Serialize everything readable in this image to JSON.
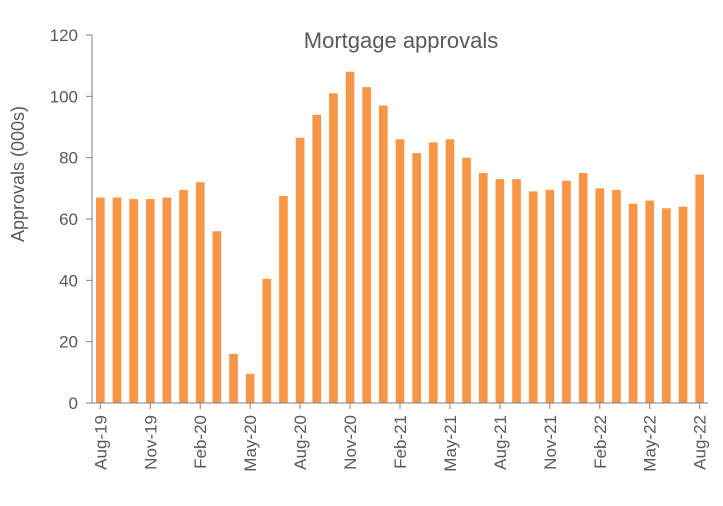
{
  "chart_data": {
    "type": "bar",
    "title": "Mortgage approvals",
    "xlabel": "",
    "ylabel": "Approvals (000s)",
    "ylim": [
      0,
      120
    ],
    "yticks": [
      0,
      20,
      40,
      60,
      80,
      100,
      120
    ],
    "grid": false,
    "legend": "none",
    "bar_color": "#f79646",
    "categories": [
      "Aug-19",
      "Sep-19",
      "Oct-19",
      "Nov-19",
      "Dec-19",
      "Jan-20",
      "Feb-20",
      "Mar-20",
      "Apr-20",
      "May-20",
      "Jun-20",
      "Jul-20",
      "Aug-20",
      "Sep-20",
      "Oct-20",
      "Nov-20",
      "Dec-20",
      "Jan-21",
      "Feb-21",
      "Mar-21",
      "Apr-21",
      "May-21",
      "Jun-21",
      "Jul-21",
      "Aug-21",
      "Sep-21",
      "Oct-21",
      "Nov-21",
      "Dec-21",
      "Jan-22",
      "Feb-22",
      "Mar-22",
      "Apr-22",
      "May-22",
      "Jun-22",
      "Jul-22",
      "Aug-22"
    ],
    "tick_labels": [
      "Aug-19",
      "Nov-19",
      "Feb-20",
      "May-20",
      "Aug-20",
      "Nov-20",
      "Feb-21",
      "May-21",
      "Aug-21",
      "Nov-21",
      "Feb-22",
      "May-22",
      "Aug-22"
    ],
    "values": [
      67,
      67,
      66.5,
      66.5,
      67,
      69.5,
      72,
      56,
      16,
      9.5,
      40.5,
      67.5,
      86.5,
      94,
      101,
      108,
      103,
      97,
      86,
      81.5,
      85,
      86,
      80,
      75,
      73,
      73,
      69,
      69.5,
      72.5,
      75,
      70,
      69.5,
      65,
      66,
      63.5,
      64,
      74.5
    ]
  }
}
